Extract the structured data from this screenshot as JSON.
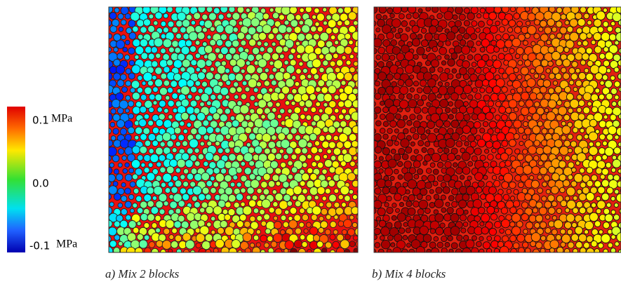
{
  "colorbar": {
    "labels": [
      {
        "value": "0.1",
        "unit": "MPa"
      },
      {
        "value": "0.0"
      },
      {
        "value": "-0.1",
        "unit": "MPa"
      }
    ]
  },
  "panels": [
    {
      "caption": "a) Mix 2 blocks"
    },
    {
      "caption": "b) Mix 4 blocks"
    }
  ]
}
